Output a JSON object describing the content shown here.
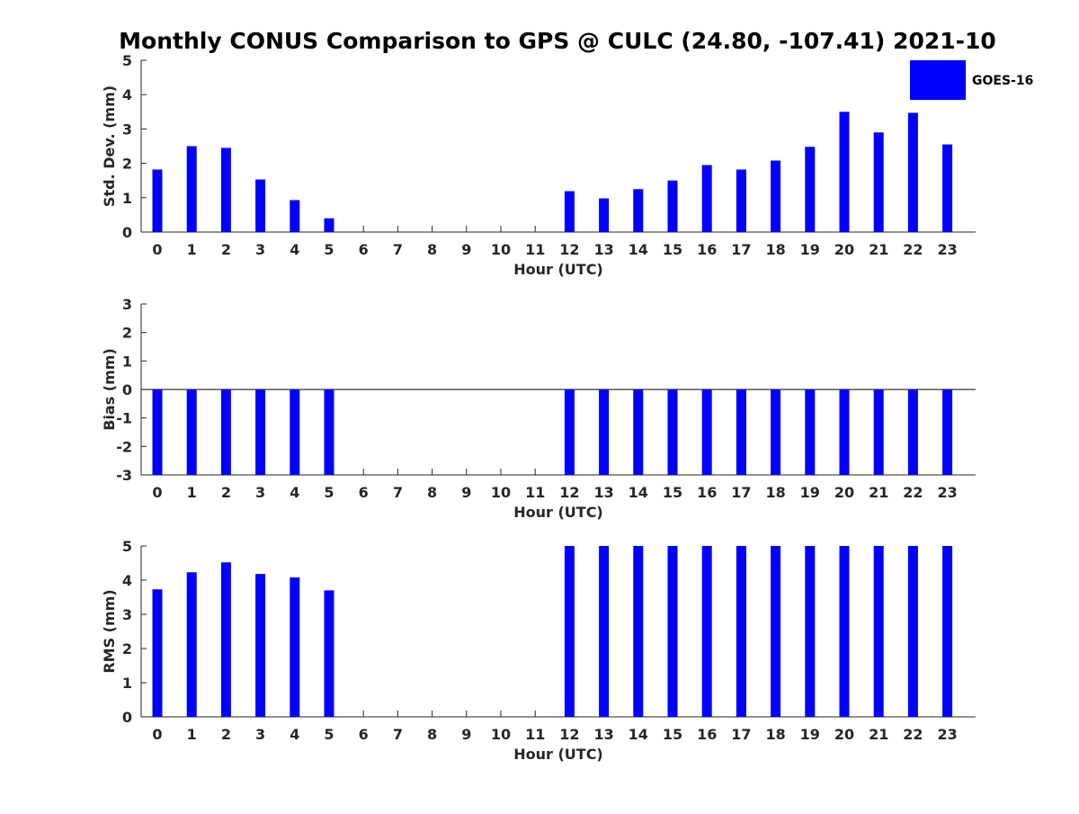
{
  "title": "Monthly CONUS Comparison to GPS @ CULC (24.80, -107.41) 2021-10",
  "legend": {
    "label": "GOES-16",
    "color": "#0000ff",
    "placement": "top-right"
  },
  "chart_data": [
    {
      "type": "bar",
      "xlabel": "Hour (UTC)",
      "ylabel": "Std. Dev. (mm)",
      "ylim": [
        0,
        5
      ],
      "yticks": [
        "0",
        "1",
        "2",
        "3",
        "4",
        "5"
      ],
      "categories": [
        "0",
        "1",
        "2",
        "3",
        "4",
        "5",
        "6",
        "7",
        "8",
        "9",
        "10",
        "11",
        "12",
        "13",
        "14",
        "15",
        "16",
        "17",
        "18",
        "19",
        "20",
        "21",
        "22",
        "23"
      ],
      "series": [
        {
          "name": "GOES-16",
          "color": "#0000ff",
          "values": [
            1.82,
            2.5,
            2.45,
            1.53,
            0.93,
            0.4,
            null,
            null,
            null,
            null,
            null,
            null,
            1.19,
            0.98,
            1.25,
            1.5,
            1.95,
            1.82,
            2.08,
            2.48,
            3.5,
            2.9,
            3.47,
            2.55
          ]
        }
      ]
    },
    {
      "type": "bar",
      "xlabel": "Hour (UTC)",
      "ylabel": "Bias (mm)",
      "ylim": [
        -3,
        3
      ],
      "yticks": [
        "-3",
        "-2",
        "-1",
        "0",
        "1",
        "2",
        "3"
      ],
      "categories": [
        "0",
        "1",
        "2",
        "3",
        "4",
        "5",
        "6",
        "7",
        "8",
        "9",
        "10",
        "11",
        "12",
        "13",
        "14",
        "15",
        "16",
        "17",
        "18",
        "19",
        "20",
        "21",
        "22",
        "23"
      ],
      "series": [
        {
          "name": "GOES-16",
          "color": "#0000ff",
          "values": [
            -3,
            -3,
            -3,
            -3,
            -3,
            -3,
            null,
            null,
            null,
            null,
            null,
            null,
            -3,
            -3,
            -3,
            -3,
            -3,
            -3,
            -3,
            -3,
            -3,
            -3,
            -3,
            -3
          ]
        }
      ]
    },
    {
      "type": "bar",
      "xlabel": "Hour (UTC)",
      "ylabel": "RMS (mm)",
      "ylim": [
        0,
        5
      ],
      "yticks": [
        "0",
        "1",
        "2",
        "3",
        "4",
        "5"
      ],
      "categories": [
        "0",
        "1",
        "2",
        "3",
        "4",
        "5",
        "6",
        "7",
        "8",
        "9",
        "10",
        "11",
        "12",
        "13",
        "14",
        "15",
        "16",
        "17",
        "18",
        "19",
        "20",
        "21",
        "22",
        "23"
      ],
      "series": [
        {
          "name": "GOES-16",
          "color": "#0000ff",
          "values": [
            3.73,
            4.23,
            4.52,
            4.18,
            4.08,
            3.7,
            null,
            null,
            null,
            null,
            null,
            null,
            5,
            5,
            5,
            5,
            5,
            5,
            5,
            5,
            5,
            5,
            5,
            5
          ]
        }
      ]
    }
  ]
}
